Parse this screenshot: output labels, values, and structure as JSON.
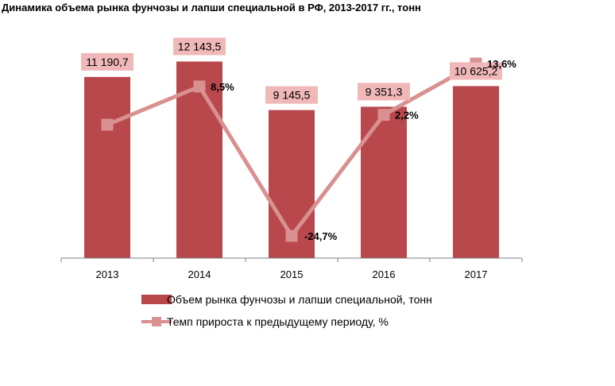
{
  "chart_data": {
    "type": "bar",
    "title": "Динамика объема рынка фунчозы и лапши специальной в РФ, 2013-2017 гг., тонн",
    "categories": [
      "2013",
      "2014",
      "2015",
      "2016",
      "2017"
    ],
    "series": [
      {
        "name": "Объем рынка фунчозы и лапши специальной, тонн",
        "kind": "bar",
        "values": [
          11190.7,
          12143.5,
          9145.5,
          9351.3,
          10625.2
        ],
        "labels": [
          "11 190,7",
          "12 143,5",
          "9 145,5",
          "9 351,3",
          "10 625,2"
        ]
      },
      {
        "name": "Темп прироста к предыдущему периоду, %",
        "kind": "line",
        "values": [
          null,
          8.5,
          -24.7,
          2.2,
          13.6
        ],
        "labels": [
          "",
          "8,5%",
          "-24,7%",
          "2,2%",
          "13,6%"
        ]
      }
    ],
    "ylim_bars": [
      0,
      13000
    ],
    "ylim_line": [
      -30,
      18
    ],
    "colors": {
      "bar": "#b8484b",
      "bar_label_bg": "#f0b8b8",
      "line": "#d99090",
      "axis": "#808080"
    },
    "legend_position": "bottom"
  }
}
